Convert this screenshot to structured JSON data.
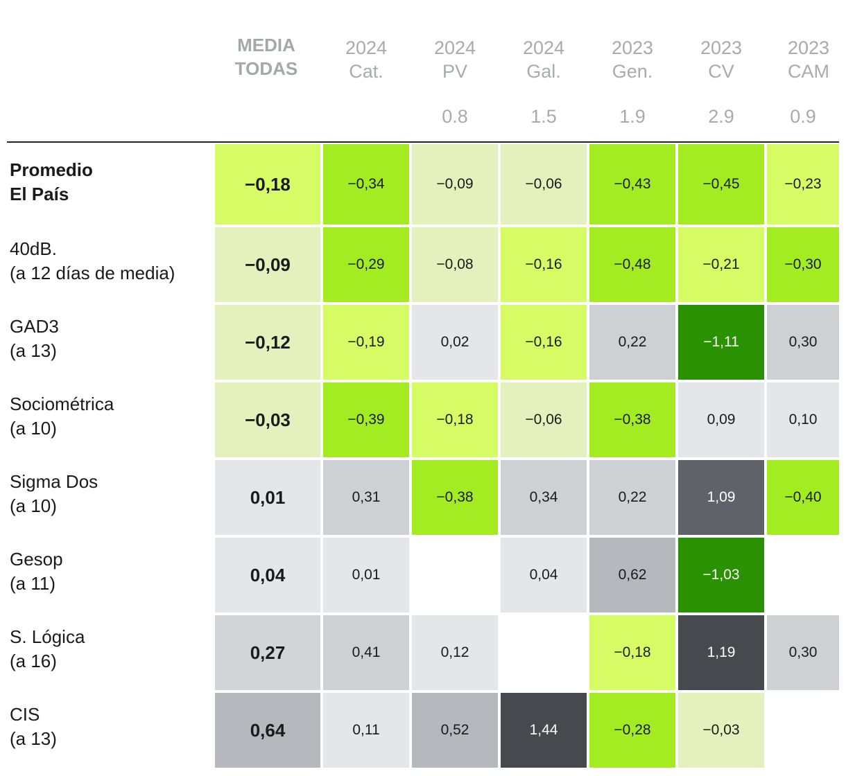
{
  "chart_data": {
    "type": "table",
    "columns": [
      {
        "line1": "MEDIA",
        "line2": "TODAS",
        "sub": ""
      },
      {
        "line1": "2024",
        "line2": "Cat.",
        "sub": ""
      },
      {
        "line1": "2024",
        "line2": "PV",
        "sub": "0.8"
      },
      {
        "line1": "2024",
        "line2": "Gal.",
        "sub": "1.5"
      },
      {
        "line1": "2023",
        "line2": "Gen.",
        "sub": "1.9"
      },
      {
        "line1": "2023",
        "line2": "CV",
        "sub": "2.9"
      },
      {
        "line1": "2023",
        "line2": "CAM",
        "sub": "0.9"
      }
    ],
    "rows": [
      {
        "line1": "Promedio",
        "line2": "El País",
        "bold": true,
        "values": [
          "−0,18",
          "−0,34",
          "−0,09",
          "−0,06",
          "−0,43",
          "−0,45",
          "−0,23"
        ]
      },
      {
        "line1": "40dB.",
        "line2": "(a 12 días de media)",
        "bold": false,
        "values": [
          "−0,09",
          "−0,29",
          "−0,08",
          "−0,16",
          "−0,48",
          "−0,21",
          "−0,30"
        ]
      },
      {
        "line1": "GAD3",
        "line2": "(a 13)",
        "bold": false,
        "values": [
          "−0,12",
          "−0,19",
          "0,02",
          "−0,16",
          "0,22",
          "−1,11",
          "0,30"
        ]
      },
      {
        "line1": "Sociométrica",
        "line2": "(a 10)",
        "bold": false,
        "values": [
          "−0,03",
          "−0,39",
          "−0,18",
          "−0,06",
          "−0,38",
          "0,09",
          "0,10"
        ]
      },
      {
        "line1": "Sigma Dos",
        "line2": "(a 10)",
        "bold": false,
        "values": [
          "0,01",
          "0,31",
          "−0,38",
          "0,34",
          "0,22",
          "1,09",
          "−0,40"
        ]
      },
      {
        "line1": "Gesop",
        "line2": "(a 11)",
        "bold": false,
        "values": [
          "0,04",
          "0,01",
          "",
          "0,04",
          "0,62",
          "−1,03",
          ""
        ]
      },
      {
        "line1": "S. Lógica",
        "line2": "(a 16)",
        "bold": false,
        "values": [
          "0,27",
          "0,41",
          "0,12",
          "",
          "−0,18",
          "1,19",
          "0,30"
        ]
      },
      {
        "line1": "CIS",
        "line2": "(a 13)",
        "bold": false,
        "values": [
          "0,64",
          "0,11",
          "0,52",
          "1,44",
          "−0,28",
          "−0,03",
          ""
        ]
      }
    ],
    "colors": {
      "green_strong": "#2a9100",
      "green_mid": "#9ee81e",
      "green_light": "#d8fa6e",
      "green_pale": "#e6f2bb",
      "gray_light": "#e5e7ea",
      "gray_mid": "#c8cbce",
      "gray_dark": "#5f6369",
      "gray_darkest": "#46494e"
    }
  }
}
